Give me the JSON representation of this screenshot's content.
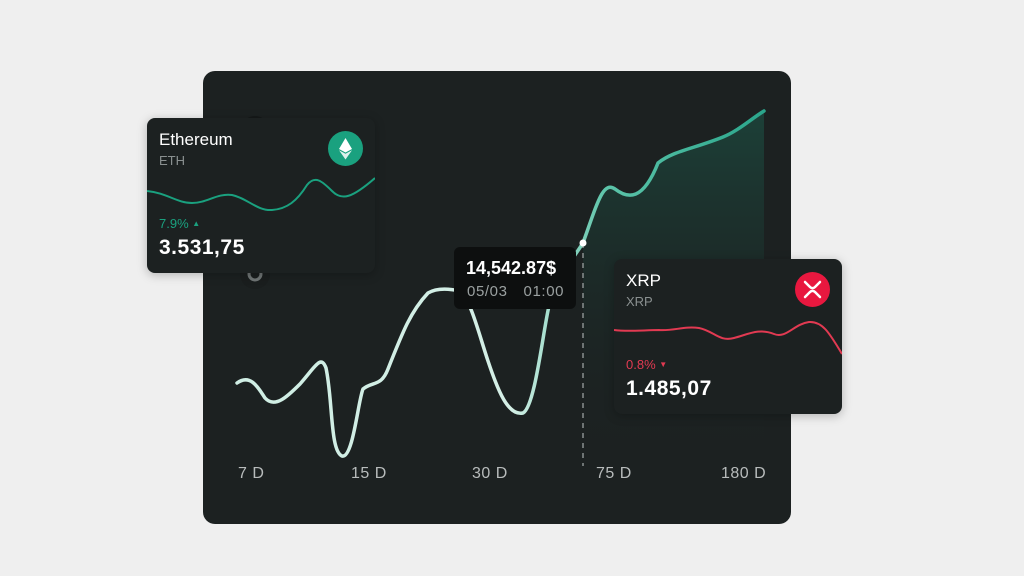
{
  "chart": {
    "x_axis_labels": [
      "7 D",
      "15 D",
      "30 D",
      "75 D",
      "180 D"
    ],
    "tooltip": {
      "value": "14,542.87$",
      "date": "05/03",
      "time": "01:00"
    },
    "line_color": "#cfeee4",
    "line_color_end": "#2ba68c"
  },
  "cards": [
    {
      "name": "Ethereum",
      "ticker": "ETH",
      "change": "7.9%",
      "direction": "up",
      "price": "3.531,75",
      "icon": "ethereum-icon",
      "accent": "#1aa17f"
    },
    {
      "name": "XRP",
      "ticker": "XRP",
      "change": "0.8%",
      "direction": "down",
      "price": "1.485,07",
      "icon": "xrp-icon",
      "accent": "#e23a52"
    }
  ]
}
